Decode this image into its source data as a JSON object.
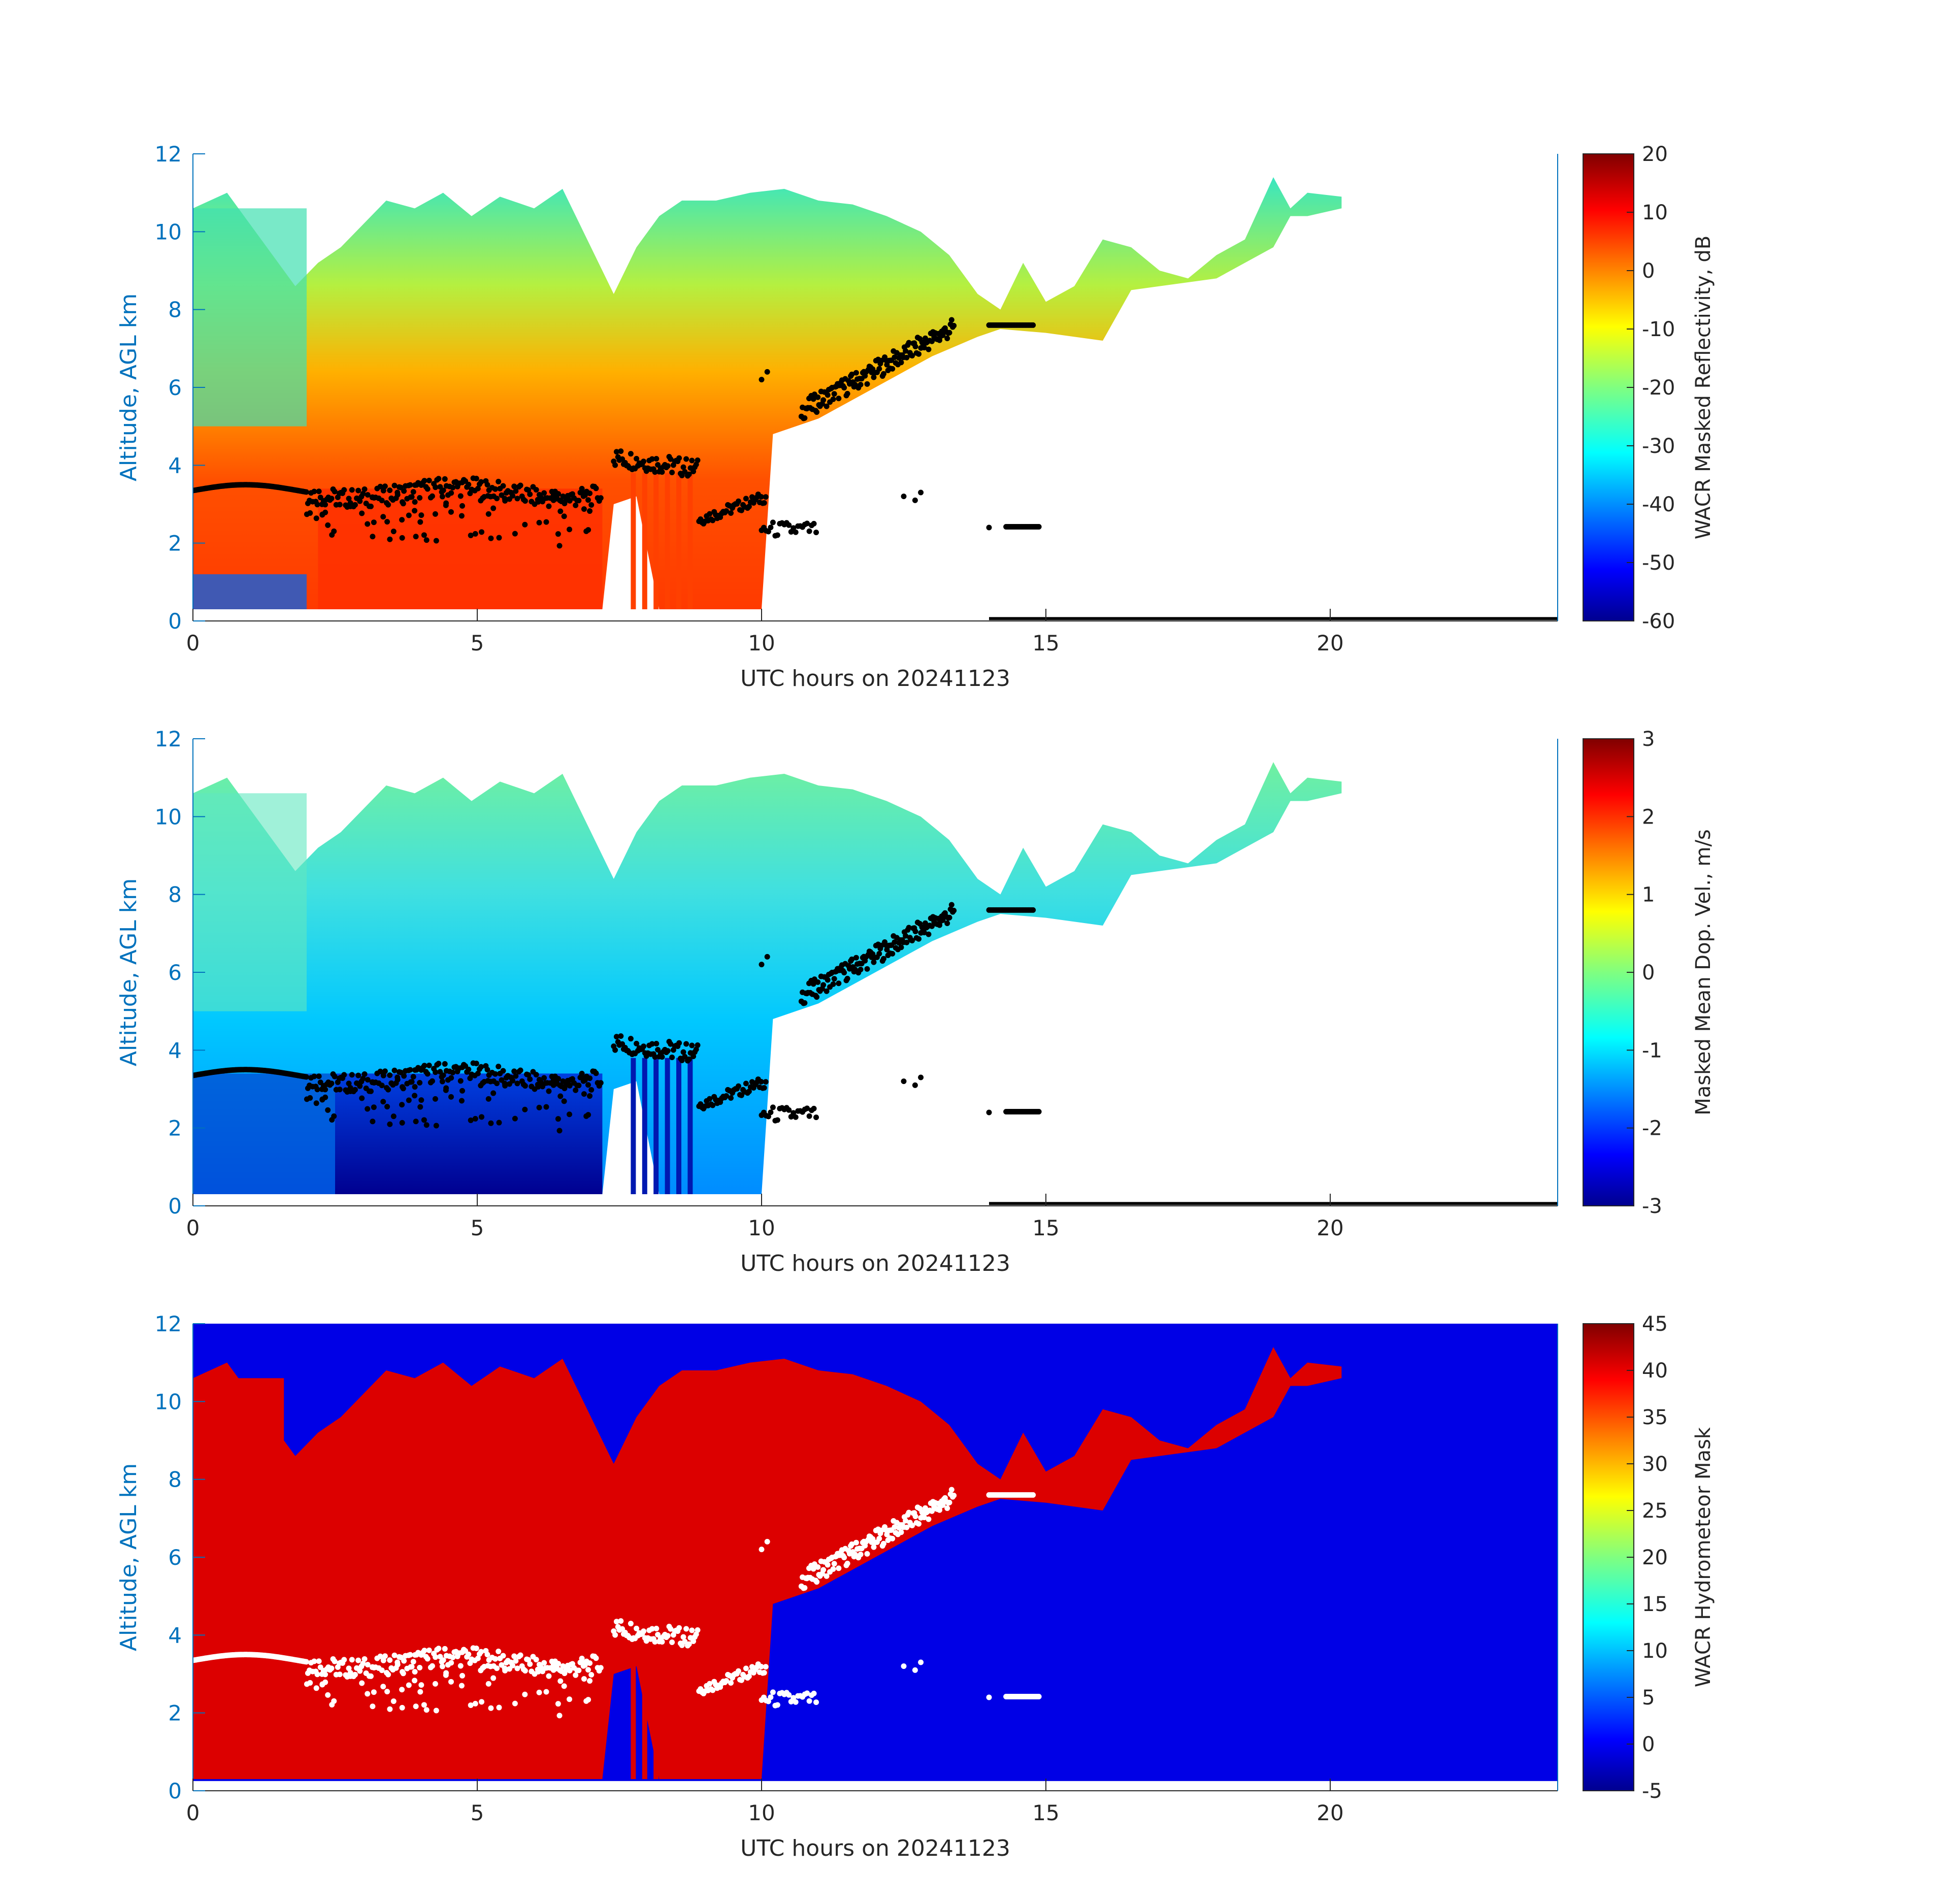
{
  "chart_data": [
    {
      "type": "heatmap",
      "panel": "reflectivity",
      "xlabel": "UTC hours on 20241123",
      "ylabel": "Altitude, AGL km",
      "xlim": [
        0,
        24
      ],
      "ylim": [
        0,
        12
      ],
      "x_ticks": [
        0,
        5,
        10,
        15,
        20
      ],
      "y_ticks": [
        0,
        2,
        4,
        6,
        8,
        10,
        12
      ],
      "colorbar": {
        "label": "WACR Masked Reflectivity, dB",
        "min": -60,
        "max": 20,
        "ticks": [
          -60,
          -50,
          -40,
          -30,
          -20,
          -10,
          0,
          10,
          20
        ],
        "colormap": "jet"
      },
      "background": "#ffffff",
      "cloud_base_marker_color": "#000000",
      "cloud_top_km": [
        [
          0,
          10.5
        ],
        [
          1,
          9.5
        ],
        [
          2,
          9.0
        ],
        [
          3,
          10.2
        ],
        [
          4,
          10.6
        ],
        [
          5,
          10.4
        ],
        [
          6,
          10.8
        ],
        [
          7,
          9.2
        ],
        [
          8,
          10.6
        ],
        [
          9,
          10.8
        ],
        [
          10,
          11.0
        ],
        [
          11,
          10.8
        ],
        [
          12,
          10.3
        ],
        [
          13,
          9.5
        ],
        [
          14,
          8.6
        ],
        [
          15,
          8.3
        ],
        [
          16,
          9.8
        ],
        [
          17,
          9.2
        ],
        [
          18,
          9.6
        ],
        [
          19,
          11.4
        ],
        [
          20,
          11.0
        ]
      ],
      "cloud_base_km": [
        [
          0,
          3.35
        ],
        [
          1,
          3.45
        ],
        [
          2,
          3.5
        ],
        [
          3,
          3.3
        ],
        [
          4,
          3.3
        ],
        [
          5,
          3.4
        ],
        [
          6,
          3.35
        ],
        [
          7,
          3.3
        ],
        [
          7.5,
          4.2
        ],
        [
          8.5,
          3.8
        ],
        [
          9,
          2.8
        ],
        [
          10,
          3.2
        ],
        [
          11,
          6.2
        ],
        [
          12,
          7.1
        ],
        [
          13,
          7.4
        ],
        [
          14.5,
          7.6
        ]
      ]
    },
    {
      "type": "heatmap",
      "panel": "doppler_velocity",
      "xlabel": "UTC hours on 20241123",
      "ylabel": "Altitude, AGL km",
      "xlim": [
        0,
        24
      ],
      "ylim": [
        0,
        12
      ],
      "x_ticks": [
        0,
        5,
        10,
        15,
        20
      ],
      "y_ticks": [
        0,
        2,
        4,
        6,
        8,
        10,
        12
      ],
      "colorbar": {
        "label": "Masked Mean Dop. Vel., m/s",
        "min": -3,
        "max": 3,
        "ticks": [
          -3,
          -2,
          -1,
          0,
          1,
          2,
          3
        ],
        "colormap": "jet"
      },
      "background": "#ffffff",
      "cloud_base_marker_color": "#000000"
    },
    {
      "type": "heatmap",
      "panel": "hydrometeor_mask",
      "xlabel": "UTC hours on 20241123",
      "ylabel": "Altitude, AGL km",
      "xlim": [
        0,
        24
      ],
      "ylim": [
        0,
        12
      ],
      "x_ticks": [
        0,
        5,
        10,
        15,
        20
      ],
      "y_ticks": [
        0,
        2,
        4,
        6,
        8,
        10,
        12
      ],
      "colorbar": {
        "label": "WACR Hydrometeor Mask",
        "min": -5,
        "max": 45,
        "ticks": [
          -5,
          0,
          5,
          10,
          15,
          20,
          25,
          30,
          35,
          40,
          45
        ],
        "colormap": "jet"
      },
      "background": "#0000e6",
      "cloud_base_marker_color": "#ffffff"
    }
  ],
  "colors": {
    "axis_blue": "#0072bd",
    "text": "#262626"
  }
}
